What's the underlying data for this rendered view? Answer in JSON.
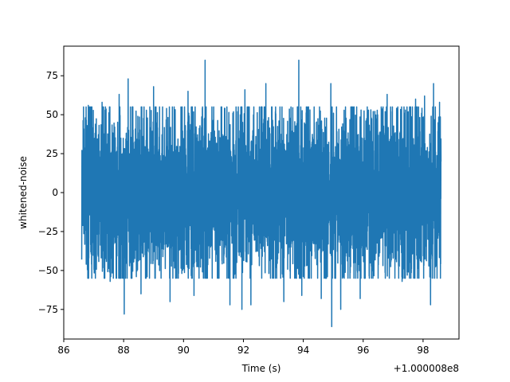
{
  "chart_data": {
    "type": "line",
    "title": "",
    "xlabel": "Time (s)",
    "ylabel": "whitened-noise",
    "x_offset_label": "+1.000008e8",
    "xlim": [
      86.0,
      99.2
    ],
    "ylim": [
      -94,
      94
    ],
    "xticks": [
      86,
      88,
      90,
      92,
      94,
      96,
      98
    ],
    "xtick_labels": [
      "86",
      "88",
      "90",
      "92",
      "94",
      "96",
      "98"
    ],
    "yticks": [
      -75,
      -50,
      -25,
      0,
      25,
      50,
      75
    ],
    "ytick_labels": [
      "−75",
      "−50",
      "−25",
      "0",
      "25",
      "50",
      "75"
    ],
    "grid": false,
    "series": [
      {
        "color": "#1f77b4",
        "x_range": [
          86.6,
          98.6
        ],
        "typical_amplitude": 38,
        "envelope_points": [
          {
            "x": 86.6,
            "y": 18
          },
          {
            "x": 86.6,
            "y": -43
          },
          {
            "x": 86.72,
            "y": 48
          },
          {
            "x": 86.75,
            "y": -46
          },
          {
            "x": 86.82,
            "y": 56
          },
          {
            "x": 87.28,
            "y": 58
          },
          {
            "x": 87.55,
            "y": -57
          },
          {
            "x": 87.85,
            "y": 63
          },
          {
            "x": 88.02,
            "y": -78
          },
          {
            "x": 88.15,
            "y": 73
          },
          {
            "x": 88.58,
            "y": -65
          },
          {
            "x": 89.0,
            "y": 68
          },
          {
            "x": 89.55,
            "y": -70
          },
          {
            "x": 90.15,
            "y": 65
          },
          {
            "x": 90.35,
            "y": -66
          },
          {
            "x": 90.72,
            "y": 85
          },
          {
            "x": 91.55,
            "y": -72
          },
          {
            "x": 91.95,
            "y": -75
          },
          {
            "x": 92.05,
            "y": 66
          },
          {
            "x": 92.25,
            "y": -72
          },
          {
            "x": 92.75,
            "y": 70
          },
          {
            "x": 93.35,
            "y": -70
          },
          {
            "x": 93.85,
            "y": 85
          },
          {
            "x": 93.95,
            "y": -66
          },
          {
            "x": 94.6,
            "y": -68
          },
          {
            "x": 94.92,
            "y": 70
          },
          {
            "x": 94.95,
            "y": -86
          },
          {
            "x": 95.25,
            "y": -75
          },
          {
            "x": 95.9,
            "y": -68
          },
          {
            "x": 96.8,
            "y": 63
          },
          {
            "x": 97.3,
            "y": -57
          },
          {
            "x": 97.75,
            "y": 60
          },
          {
            "x": 98.05,
            "y": 62
          },
          {
            "x": 98.25,
            "y": -72
          },
          {
            "x": 98.35,
            "y": 70
          },
          {
            "x": 98.55,
            "y": 58
          },
          {
            "x": 98.6,
            "y": -45
          },
          {
            "x": 98.6,
            "y": 20
          }
        ]
      }
    ]
  }
}
